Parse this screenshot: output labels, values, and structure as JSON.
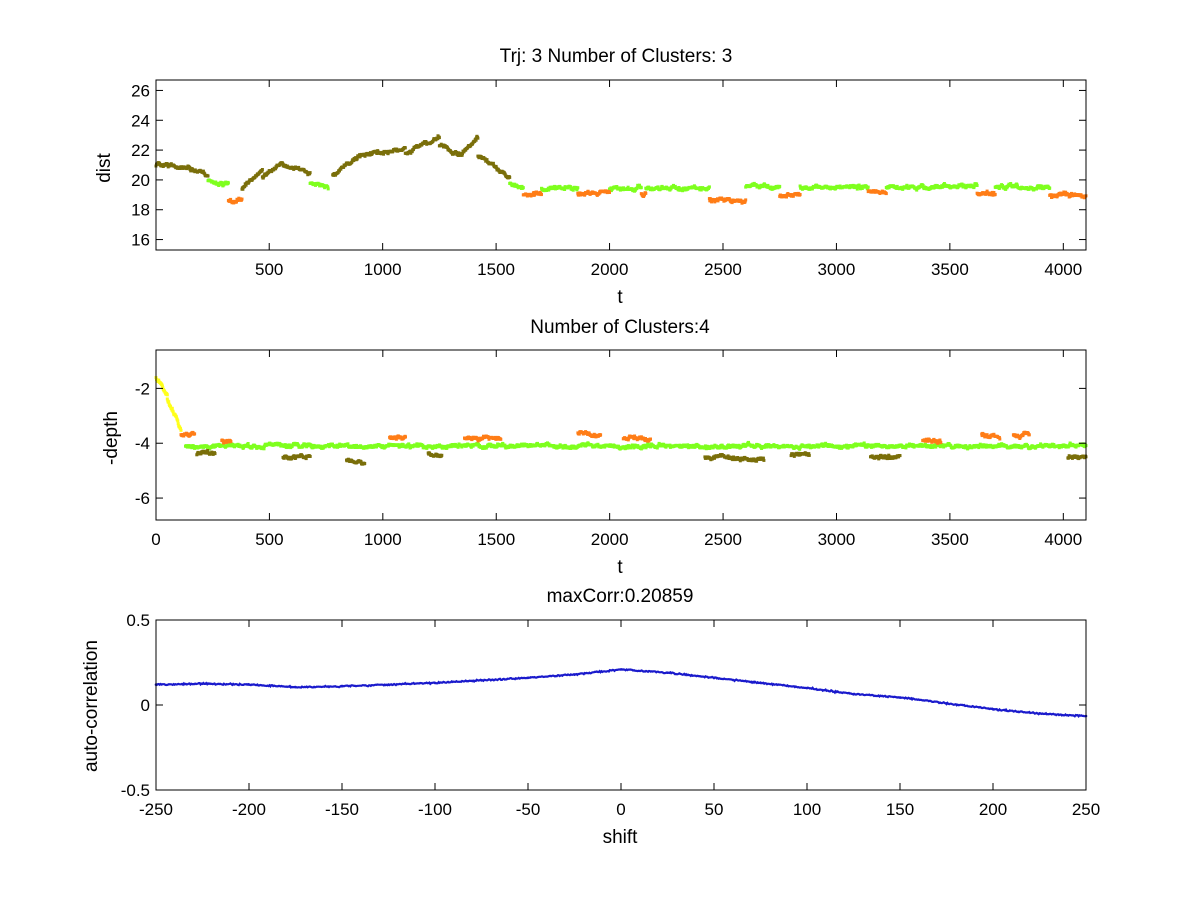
{
  "colors": {
    "olive": "#7a6f0a",
    "green": "#7fff1e",
    "orange": "#ff7d17",
    "yellow": "#ffff1a",
    "blue": "#1a1acc",
    "axis": "#000000",
    "background": "#ffffff"
  },
  "chart_data": [
    {
      "type": "scatter",
      "title": "Trj: 3 Number of Clusters: 3",
      "xlabel": "t",
      "ylabel": "dist",
      "xlim": [
        1,
        4100
      ],
      "ylim": [
        15.3,
        26.7
      ],
      "xticks": [
        500,
        1000,
        1500,
        2000,
        2500,
        3000,
        3500,
        4000
      ],
      "xtick_labels": [
        "500",
        "1000",
        "1500",
        "2000",
        "2500",
        "3000",
        "3500",
        "4000"
      ],
      "yticks": [
        16,
        18,
        20,
        22,
        24,
        26
      ],
      "ytick_labels": [
        "16",
        "18",
        "20",
        "22",
        "24",
        "26"
      ],
      "series": [
        {
          "name": "cluster-olive",
          "color": "#7a6f0a",
          "segments": [
            {
              "t": [
                1,
                150
              ],
              "y": [
                21.0,
                20.8
              ]
            },
            {
              "t": [
                150,
                230
              ],
              "y": [
                20.8,
                20.3
              ]
            },
            {
              "t": [
                380,
                470
              ],
              "y": [
                19.4,
                20.8
              ]
            },
            {
              "t": [
                470,
                560
              ],
              "y": [
                20.2,
                21.1
              ]
            },
            {
              "t": [
                560,
                680
              ],
              "y": [
                21.0,
                20.4
              ]
            },
            {
              "t": [
                780,
                900
              ],
              "y": [
                20.3,
                21.7
              ]
            },
            {
              "t": [
                900,
                1100
              ],
              "y": [
                21.7,
                22.0
              ]
            },
            {
              "t": [
                1100,
                1250
              ],
              "y": [
                21.8,
                22.8
              ]
            },
            {
              "t": [
                1250,
                1350
              ],
              "y": [
                22.3,
                21.6
              ]
            },
            {
              "t": [
                1350,
                1420
              ],
              "y": [
                21.8,
                22.8
              ]
            },
            {
              "t": [
                1420,
                1560
              ],
              "y": [
                21.6,
                20.2
              ]
            }
          ]
        },
        {
          "name": "cluster-green",
          "color": "#7fff1e",
          "segments": [
            {
              "t": [
                230,
                320
              ],
              "y": [
                19.9,
                19.7
              ]
            },
            {
              "t": [
                680,
                760
              ],
              "y": [
                19.8,
                19.6
              ]
            },
            {
              "t": [
                1560,
                1620
              ],
              "y": [
                19.8,
                19.4
              ]
            },
            {
              "t": [
                1700,
                1860
              ],
              "y": [
                19.4,
                19.5
              ]
            },
            {
              "t": [
                2000,
                2140
              ],
              "y": [
                19.4,
                19.4
              ]
            },
            {
              "t": [
                2160,
                2440
              ],
              "y": [
                19.4,
                19.5
              ]
            },
            {
              "t": [
                2600,
                2750
              ],
              "y": [
                19.6,
                19.5
              ]
            },
            {
              "t": [
                2840,
                3140
              ],
              "y": [
                19.5,
                19.5
              ]
            },
            {
              "t": [
                3220,
                3620
              ],
              "y": [
                19.5,
                19.6
              ]
            },
            {
              "t": [
                3700,
                3940
              ],
              "y": [
                19.5,
                19.5
              ]
            }
          ]
        },
        {
          "name": "cluster-orange",
          "color": "#ff7d17",
          "segments": [
            {
              "t": [
                320,
                380
              ],
              "y": [
                18.6,
                18.6
              ]
            },
            {
              "t": [
                1620,
                1700
              ],
              "y": [
                19.0,
                19.1
              ]
            },
            {
              "t": [
                1860,
                2000
              ],
              "y": [
                19.1,
                19.2
              ]
            },
            {
              "t": [
                2140,
                2160
              ],
              "y": [
                19.1,
                19.1
              ]
            },
            {
              "t": [
                2440,
                2600
              ],
              "y": [
                18.7,
                18.6
              ]
            },
            {
              "t": [
                2750,
                2840
              ],
              "y": [
                19.0,
                19.0
              ]
            },
            {
              "t": [
                3140,
                3220
              ],
              "y": [
                19.2,
                19.2
              ]
            },
            {
              "t": [
                3620,
                3700
              ],
              "y": [
                19.1,
                19.1
              ]
            },
            {
              "t": [
                3940,
                4100
              ],
              "y": [
                19.0,
                18.9
              ]
            }
          ]
        }
      ]
    },
    {
      "type": "scatter",
      "title": "Number of Clusters:4",
      "xlabel": "t",
      "ylabel": "-depth",
      "xlim": [
        0,
        4100
      ],
      "ylim": [
        -6.8,
        -0.6
      ],
      "xticks": [
        0,
        500,
        1000,
        1500,
        2000,
        2500,
        3000,
        3500,
        4000
      ],
      "xtick_labels": [
        "0",
        "500",
        "1000",
        "1500",
        "2000",
        "2500",
        "3000",
        "3500",
        "4000"
      ],
      "yticks": [
        -6,
        -4,
        -2
      ],
      "ytick_labels": [
        "-6",
        "-4",
        "-2"
      ],
      "series": [
        {
          "name": "cluster-yellow",
          "color": "#ffff1a",
          "segments": [
            {
              "t": [
                0,
                50
              ],
              "y": [
                -1.6,
                -2.2
              ]
            },
            {
              "t": [
                50,
                110
              ],
              "y": [
                -2.4,
                -3.5
              ]
            }
          ]
        },
        {
          "name": "cluster-green",
          "color": "#7fff1e",
          "segments": [
            {
              "t": [
                130,
                4100
              ],
              "y": [
                -4.1,
                -4.1
              ]
            }
          ]
        },
        {
          "name": "cluster-olive",
          "color": "#7a6f0a",
          "segments": [
            {
              "t": [
                180,
                260
              ],
              "y": [
                -4.4,
                -4.4
              ]
            },
            {
              "t": [
                560,
                680
              ],
              "y": [
                -4.5,
                -4.5
              ]
            },
            {
              "t": [
                840,
                920
              ],
              "y": [
                -4.6,
                -4.7
              ]
            },
            {
              "t": [
                1200,
                1260
              ],
              "y": [
                -4.4,
                -4.4
              ]
            },
            {
              "t": [
                2420,
                2680
              ],
              "y": [
                -4.5,
                -4.6
              ]
            },
            {
              "t": [
                2800,
                2880
              ],
              "y": [
                -4.4,
                -4.4
              ]
            },
            {
              "t": [
                3150,
                3280
              ],
              "y": [
                -4.5,
                -4.5
              ]
            },
            {
              "t": [
                4020,
                4100
              ],
              "y": [
                -4.5,
                -4.5
              ]
            }
          ]
        },
        {
          "name": "cluster-orange",
          "color": "#ff7d17",
          "segments": [
            {
              "t": [
                110,
                170
              ],
              "y": [
                -3.7,
                -3.7
              ]
            },
            {
              "t": [
                290,
                330
              ],
              "y": [
                -3.9,
                -3.9
              ]
            },
            {
              "t": [
                1030,
                1100
              ],
              "y": [
                -3.8,
                -3.8
              ]
            },
            {
              "t": [
                1360,
                1520
              ],
              "y": [
                -3.8,
                -3.8
              ]
            },
            {
              "t": [
                1860,
                1960
              ],
              "y": [
                -3.6,
                -3.7
              ]
            },
            {
              "t": [
                2060,
                2180
              ],
              "y": [
                -3.8,
                -3.8
              ]
            },
            {
              "t": [
                3380,
                3460
              ],
              "y": [
                -3.9,
                -3.9
              ]
            },
            {
              "t": [
                3640,
                3720
              ],
              "y": [
                -3.7,
                -3.8
              ]
            },
            {
              "t": [
                3780,
                3850
              ],
              "y": [
                -3.7,
                -3.7
              ]
            }
          ]
        }
      ]
    },
    {
      "type": "line",
      "title": "maxCorr:0.20859",
      "xlabel": "shift",
      "ylabel": "auto-correlation",
      "xlim": [
        -250,
        250
      ],
      "ylim": [
        -0.5,
        0.5
      ],
      "xticks": [
        -250,
        -200,
        -150,
        -100,
        -50,
        0,
        50,
        100,
        150,
        200,
        250
      ],
      "xtick_labels": [
        "-250",
        "-200",
        "-150",
        "-100",
        "-50",
        "0",
        "50",
        "100",
        "150",
        "200",
        "250"
      ],
      "yticks": [
        -0.5,
        0,
        0.5
      ],
      "ytick_labels": [
        "-0.5",
        "0",
        "0.5"
      ],
      "series": [
        {
          "name": "auto-correlation",
          "color": "#1a1acc",
          "x": [
            -250,
            -225,
            -200,
            -175,
            -150,
            -125,
            -100,
            -75,
            -50,
            -25,
            0,
            25,
            50,
            75,
            100,
            125,
            150,
            175,
            200,
            225,
            250
          ],
          "y": [
            0.12,
            0.125,
            0.12,
            0.105,
            0.11,
            0.12,
            0.13,
            0.145,
            0.16,
            0.18,
            0.2086,
            0.19,
            0.16,
            0.13,
            0.1,
            0.065,
            0.045,
            0.01,
            -0.025,
            -0.05,
            -0.065
          ]
        }
      ]
    }
  ]
}
